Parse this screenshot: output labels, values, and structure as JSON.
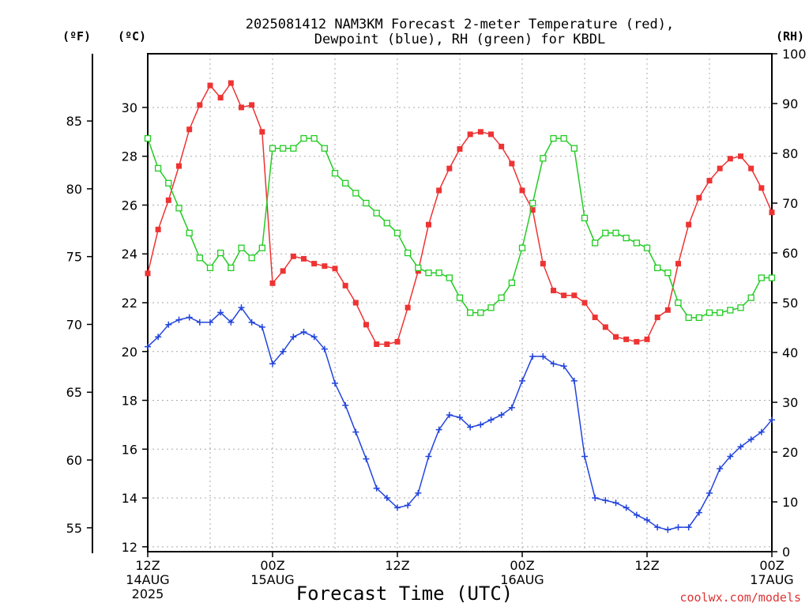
{
  "chart_data": {
    "type": "line",
    "title_line1": "2025081412 NAM3KM Forecast 2-meter Temperature (red),",
    "title_line2": "Dewpoint (blue), RH (green) for KBDL",
    "xlabel": "Forecast Time (UTC)",
    "credit": "coolwx.com/models",
    "units": {
      "fahrenheit": "(ºF)",
      "celsius": "(ºC)",
      "rh": "(RH)"
    },
    "ylim_celsius": [
      11.8,
      32.2
    ],
    "ylim_rh": [
      0,
      100
    ],
    "xlim_hours": [
      0,
      60
    ],
    "grid": true,
    "x_ticks": [
      {
        "h": 0,
        "lines": [
          "12Z",
          "14AUG",
          "2025"
        ]
      },
      {
        "h": 12,
        "lines": [
          "00Z",
          "15AUG"
        ]
      },
      {
        "h": 24,
        "lines": [
          "12Z"
        ]
      },
      {
        "h": 36,
        "lines": [
          "00Z",
          "16AUG"
        ]
      },
      {
        "h": 48,
        "lines": [
          "12Z"
        ]
      },
      {
        "h": 60,
        "lines": [
          "00Z",
          "17AUG"
        ]
      }
    ],
    "celsius_ticks": [
      12,
      14,
      16,
      18,
      20,
      22,
      24,
      26,
      28,
      30
    ],
    "fahrenheit_ticks": [
      55,
      60,
      65,
      70,
      75,
      80,
      85
    ],
    "rh_ticks": [
      0,
      10,
      20,
      30,
      40,
      50,
      60,
      70,
      80,
      90,
      100
    ],
    "colors": {
      "temperature": "#ee3333",
      "dewpoint": "#2244dd",
      "rh": "#22cc22"
    },
    "x_hours": [
      0,
      1,
      2,
      3,
      4,
      5,
      6,
      7,
      8,
      9,
      10,
      11,
      12,
      13,
      14,
      15,
      16,
      17,
      18,
      19,
      20,
      21,
      22,
      23,
      24,
      25,
      26,
      27,
      28,
      29,
      30,
      31,
      32,
      33,
      34,
      35,
      36,
      37,
      38,
      39,
      40,
      41,
      42,
      43,
      44,
      45,
      46,
      47,
      48,
      49,
      50,
      51,
      52,
      53,
      54,
      55,
      56,
      57,
      58,
      59,
      60
    ],
    "series": [
      {
        "name": "Temperature",
        "unit": "C",
        "marker": "filled-square",
        "values": [
          23.2,
          25.0,
          26.2,
          27.6,
          29.1,
          30.1,
          30.9,
          30.4,
          31.0,
          30.0,
          30.1,
          29.0,
          22.8,
          23.3,
          23.9,
          23.8,
          23.6,
          23.5,
          23.4,
          22.7,
          22.0,
          21.1,
          20.3,
          20.3,
          20.4,
          21.8,
          23.3,
          25.2,
          26.6,
          27.5,
          28.3,
          28.9,
          29.0,
          28.9,
          28.4,
          27.7,
          26.6,
          25.8,
          23.6,
          22.5,
          22.3,
          22.3,
          22.0,
          21.4,
          21.0,
          20.6,
          20.5,
          20.4,
          20.5,
          21.4,
          21.7,
          23.6,
          25.2,
          26.3,
          27.0,
          27.5,
          27.9,
          28.0,
          27.5,
          26.7,
          25.7
        ]
      },
      {
        "name": "Dewpoint",
        "unit": "C",
        "marker": "plus",
        "values": [
          20.2,
          20.6,
          21.1,
          21.3,
          21.4,
          21.2,
          21.2,
          21.6,
          21.2,
          21.8,
          21.2,
          21.0,
          19.5,
          20.0,
          20.6,
          20.8,
          20.6,
          20.1,
          18.7,
          17.8,
          16.7,
          15.6,
          14.4,
          14.0,
          13.6,
          13.7,
          14.2,
          15.7,
          16.8,
          17.4,
          17.3,
          16.9,
          17.0,
          17.2,
          17.4,
          17.7,
          18.8,
          19.8,
          19.8,
          19.5,
          19.4,
          18.8,
          15.7,
          14.0,
          13.9,
          13.8,
          13.6,
          13.3,
          13.1,
          12.8,
          12.7,
          12.8,
          12.8,
          13.4,
          14.2,
          15.2,
          15.7,
          16.1,
          16.4,
          16.7,
          17.2
        ]
      },
      {
        "name": "RH",
        "unit": "%",
        "marker": "open-square",
        "values": [
          83,
          77,
          74,
          69,
          64,
          59,
          57,
          60,
          57,
          61,
          59,
          61,
          81,
          81,
          81,
          83,
          83,
          81,
          76,
          74,
          72,
          70,
          68,
          66,
          64,
          60,
          57,
          56,
          56,
          55,
          51,
          48,
          48,
          49,
          51,
          54,
          61,
          70,
          79,
          83,
          83,
          81,
          67,
          62,
          64,
          64,
          63,
          62,
          61,
          57,
          56,
          50,
          47,
          47,
          48,
          48,
          48.5,
          49,
          51,
          55,
          55
        ]
      }
    ]
  }
}
